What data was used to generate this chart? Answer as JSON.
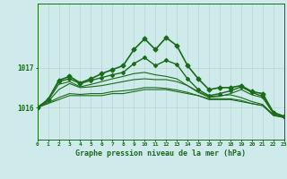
{
  "title": "Graphe pression niveau de la mer (hPa)",
  "bg_color": "#ceeaea",
  "grid_vcolor": "#b8d8d0",
  "grid_hcolor": "#b8d8d0",
  "line_color": "#1a6b1a",
  "yticks": [
    1016,
    1017
  ],
  "ylim": [
    1015.2,
    1018.6
  ],
  "xlim": [
    0,
    23
  ],
  "xtick_labels": [
    "0",
    "1",
    "2",
    "3",
    "4",
    "5",
    "6",
    "7",
    "8",
    "9",
    "10",
    "11",
    "12",
    "13",
    "14",
    "15",
    "16",
    "17",
    "18",
    "19",
    "20",
    "21",
    "22",
    "23"
  ],
  "series": [
    {
      "x": [
        0,
        1,
        2,
        3,
        4,
        5,
        6,
        7,
        8,
        9,
        10,
        11,
        12,
        13,
        14,
        15,
        16,
        17,
        18,
        19,
        20,
        21,
        22,
        23
      ],
      "y": [
        1016.0,
        1016.1,
        1016.2,
        1016.3,
        1016.3,
        1016.3,
        1016.3,
        1016.35,
        1016.35,
        1016.4,
        1016.45,
        1016.45,
        1016.45,
        1016.4,
        1016.35,
        1016.3,
        1016.2,
        1016.2,
        1016.2,
        1016.15,
        1016.1,
        1016.05,
        1015.8,
        1015.75
      ],
      "marker": null,
      "lw": 0.8
    },
    {
      "x": [
        0,
        1,
        2,
        3,
        4,
        5,
        6,
        7,
        8,
        9,
        10,
        11,
        12,
        13,
        14,
        15,
        16,
        17,
        18,
        19,
        20,
        21,
        22,
        23
      ],
      "y": [
        1016.0,
        1016.12,
        1016.25,
        1016.35,
        1016.33,
        1016.35,
        1016.35,
        1016.4,
        1016.42,
        1016.45,
        1016.5,
        1016.5,
        1016.48,
        1016.44,
        1016.38,
        1016.3,
        1016.22,
        1016.22,
        1016.22,
        1016.18,
        1016.1,
        1016.05,
        1015.82,
        1015.76
      ],
      "marker": null,
      "lw": 0.8
    },
    {
      "x": [
        0,
        1,
        2,
        3,
        4,
        5,
        6,
        7,
        8,
        9,
        10,
        11,
        12,
        13,
        14,
        15,
        16,
        17,
        18,
        19,
        20,
        21,
        22,
        23
      ],
      "y": [
        1016.0,
        1016.15,
        1016.45,
        1016.6,
        1016.5,
        1016.52,
        1016.55,
        1016.6,
        1016.65,
        1016.7,
        1016.72,
        1016.7,
        1016.7,
        1016.65,
        1016.55,
        1016.4,
        1016.28,
        1016.3,
        1016.32,
        1016.25,
        1016.15,
        1016.08,
        1015.82,
        1015.76
      ],
      "marker": null,
      "lw": 0.8
    },
    {
      "x": [
        0,
        1,
        2,
        3,
        4,
        5,
        6,
        7,
        8,
        9,
        10,
        11,
        12,
        13,
        14,
        15,
        16,
        17,
        18,
        19,
        20,
        21,
        22,
        23
      ],
      "y": [
        1016.0,
        1016.18,
        1016.58,
        1016.65,
        1016.52,
        1016.58,
        1016.65,
        1016.72,
        1016.78,
        1016.85,
        1016.88,
        1016.82,
        1016.78,
        1016.72,
        1016.55,
        1016.38,
        1016.26,
        1016.28,
        1016.35,
        1016.45,
        1016.32,
        1016.25,
        1015.85,
        1015.78
      ],
      "marker": null,
      "lw": 0.8
    },
    {
      "x": [
        0,
        1,
        2,
        3,
        4,
        5,
        6,
        7,
        8,
        9,
        10,
        11,
        12,
        13,
        14,
        15,
        16,
        17,
        18,
        19,
        20,
        21,
        22,
        23
      ],
      "y": [
        1016.0,
        1016.2,
        1016.65,
        1016.72,
        1016.6,
        1016.68,
        1016.75,
        1016.82,
        1016.88,
        1017.1,
        1017.25,
        1017.05,
        1017.18,
        1017.08,
        1016.72,
        1016.45,
        1016.3,
        1016.35,
        1016.42,
        1016.52,
        1016.38,
        1016.28,
        1015.88,
        1015.78
      ],
      "marker": "D",
      "ms": 2.0,
      "lw": 1.0
    }
  ],
  "main_series": {
    "x": [
      0,
      1,
      2,
      3,
      4,
      5,
      6,
      7,
      8,
      9,
      10,
      11,
      12,
      13,
      14,
      15,
      16,
      17,
      18,
      19,
      20,
      21,
      22,
      23
    ],
    "y": [
      1016.0,
      1016.2,
      1016.68,
      1016.78,
      1016.62,
      1016.72,
      1016.85,
      1016.95,
      1017.05,
      1017.45,
      1017.72,
      1017.45,
      1017.75,
      1017.55,
      1017.05,
      1016.72,
      1016.45,
      1016.5,
      1016.5,
      1016.55,
      1016.4,
      1016.35,
      1015.88,
      1015.78
    ],
    "marker": "D",
    "ms": 2.5,
    "lw": 1.2
  }
}
